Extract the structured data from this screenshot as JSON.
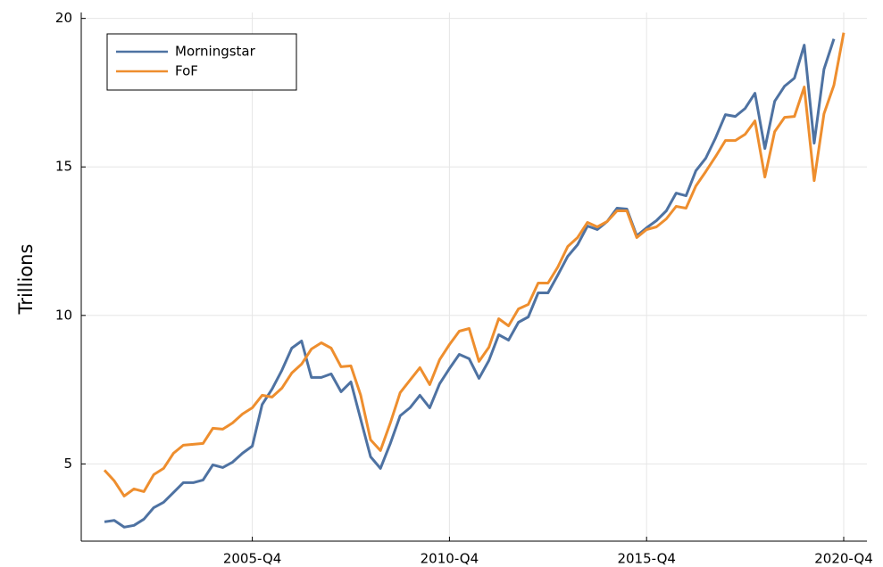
{
  "chart_data": {
    "type": "line",
    "y_label": "Trillions",
    "categories": [
      null,
      null,
      null,
      null,
      null,
      null,
      null,
      null,
      null,
      null,
      null,
      null,
      null,
      null,
      null,
      "2005-Q4",
      null,
      null,
      null,
      null,
      null,
      null,
      null,
      null,
      null,
      null,
      null,
      null,
      null,
      null,
      null,
      null,
      null,
      null,
      null,
      "2010-Q4",
      null,
      null,
      null,
      null,
      null,
      null,
      null,
      null,
      null,
      null,
      null,
      null,
      null,
      null,
      null,
      null,
      null,
      null,
      null,
      "2015-Q4",
      null,
      null,
      null,
      null,
      null,
      null,
      null,
      null,
      null,
      null,
      null,
      null,
      null,
      null,
      null,
      null,
      null,
      null,
      null,
      "2020-Q4"
    ],
    "series": [
      {
        "name": "Morningstar",
        "color": "#4e72a2",
        "values": [
          3.05,
          3.1,
          2.87,
          2.93,
          3.14,
          3.53,
          3.71,
          4.04,
          4.37,
          4.37,
          4.46,
          4.97,
          4.88,
          5.06,
          5.36,
          5.6,
          7.0,
          7.52,
          8.15,
          8.9,
          9.14,
          7.91,
          7.91,
          8.03,
          7.43,
          7.76,
          6.5,
          5.24,
          4.85,
          5.69,
          6.62,
          6.89,
          7.31,
          6.89,
          7.7,
          8.21,
          8.69,
          8.54,
          7.88,
          8.48,
          9.35,
          9.17,
          9.77,
          9.95,
          10.76,
          10.76,
          11.36,
          11.99,
          12.38,
          13.01,
          12.89,
          13.16,
          13.61,
          13.58,
          12.68,
          12.95,
          13.19,
          13.52,
          14.12,
          14.03,
          14.87,
          15.29,
          15.98,
          16.76,
          16.7,
          16.97,
          17.48,
          15.62,
          17.21,
          17.72,
          17.99,
          19.1,
          15.8,
          18.29,
          19.31,
          null
        ]
      },
      {
        "name": "FoF",
        "color": "#ee8e2e",
        "values": [
          4.79,
          4.43,
          3.92,
          4.16,
          4.07,
          4.64,
          4.85,
          5.36,
          5.63,
          5.66,
          5.69,
          6.2,
          6.17,
          6.38,
          6.68,
          6.89,
          7.31,
          7.25,
          7.55,
          8.06,
          8.36,
          8.87,
          9.08,
          8.9,
          8.27,
          8.3,
          7.31,
          5.81,
          5.45,
          6.38,
          7.4,
          7.82,
          8.24,
          7.67,
          8.51,
          9.02,
          9.47,
          9.56,
          8.45,
          8.93,
          9.89,
          9.65,
          10.22,
          10.37,
          11.09,
          11.09,
          11.63,
          12.32,
          12.62,
          13.13,
          12.98,
          13.16,
          13.52,
          13.52,
          12.62,
          12.89,
          12.98,
          13.25,
          13.67,
          13.61,
          14.36,
          14.84,
          15.35,
          15.89,
          15.89,
          16.1,
          16.55,
          14.66,
          16.19,
          16.67,
          16.7,
          17.69,
          14.54,
          16.79,
          17.75,
          19.52
        ]
      }
    ],
    "ylim": [
      2.4,
      20.2
    ],
    "yticks": [
      5,
      10,
      15,
      20
    ],
    "grid": true,
    "legend": "top-left"
  }
}
